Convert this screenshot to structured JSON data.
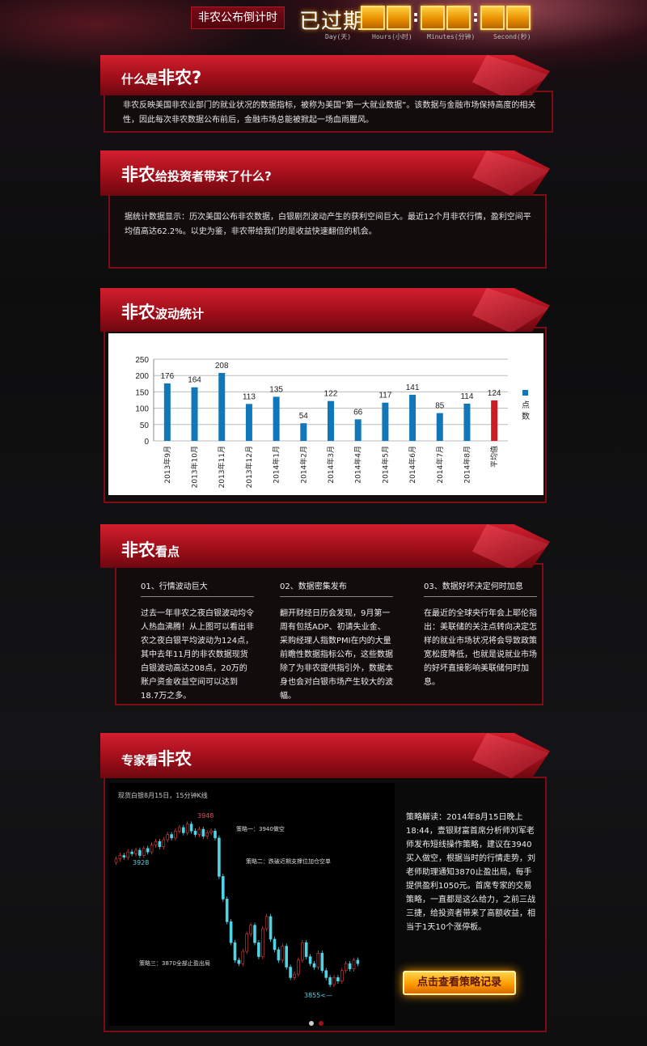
{
  "countdown": {
    "label": "非农公布倒计时",
    "status": "已过期",
    "units": [
      "Day(天)",
      "Hours(小时)",
      "Minutes(分钟)",
      "Second(秒)"
    ]
  },
  "sections": {
    "what": {
      "title_small": "什么是",
      "title_big": "非农?",
      "body": "非农反映美国非农业部门的就业状况的数据指标，被称为美国“第一大就业数据”。该数据与金融市场保持高度的相关性，因此每次非农数据公布前后，金融市场总能被掀起一场血雨腥风。"
    },
    "bring": {
      "title_big": "非农",
      "title_small": "给投资者带来了什么?",
      "body": "据统计数据显示：历次美国公布非农数据，白银剧烈波动产生的获利空间巨大。最近12个月非农行情，盈利空间平均值高达62.2%。以史为鉴，非农带给我们的是收益快速翻倍的机会。"
    },
    "stats": {
      "title_big": "非农",
      "title_small": "波动统计"
    },
    "points": {
      "title_big": "非农",
      "title_small": "看点",
      "items": [
        {
          "heading": "01、行情波动巨大",
          "body": "过去一年非农之夜白银波动均令人热血沸腾！从上图可以看出非农之夜白银平均波动为124点，其中去年11月的非农数据现货白银波动高达208点，20万的账户资金收益空间可以达到18.7万之多。"
        },
        {
          "heading": "02、数据密集发布",
          "body": "翻开财经日历会发现，9月第一周有包括ADP、初请失业金、采购经理人指数PMI在内的大量前瞻性数据指标公布，这些数据除了为非农提供指引外，数据本身也会对白银市场产生较大的波幅。"
        },
        {
          "heading": "03、数据好坏决定何时加息",
          "body": "在最近的全球央行年会上耶伦指出：美联储的关注点转向决定怎样的就业市场状况将会导致政策宽松度降低，也就是说就业市场的好坏直接影响美联储何时加息。"
        }
      ]
    },
    "expert": {
      "title_small": "专家看",
      "title_big": "非农",
      "kline_caption": "现货白银8月15日，15分钟K线",
      "price_high": "3948",
      "price_open": "3928",
      "price_low": "3855<—",
      "strategy_1": "策略一：3940做空",
      "strategy_2": "策略二：跌破近期支撑位加仓空单",
      "strategy_3": "策略三：3870全部止盈出局",
      "analysis": "策略解读：2014年8月15日晚上18:44，壹银财富首席分析师刘军老师发布短线操作策略，建议在3940买入做空，根据当时的行情走势，刘老师助理通知3870止盈出局，每手提供盈利1050元。首席专家的交易策略，一直都是这么给力，之前三战三捷，给投资者带来了高额收益，相当于1天10个涨停板。",
      "cta": "点击查看策略记录"
    }
  },
  "chart_data": {
    "type": "bar",
    "categories": [
      "2013年9月",
      "2013年10月",
      "2013年11月",
      "2013年12月",
      "2014年1月",
      "2014年2月",
      "2014年3月",
      "2014年4月",
      "2014年5月",
      "2014年6月",
      "2014年7月",
      "2014年8月",
      "平均值"
    ],
    "values": [
      176,
      164,
      208,
      113,
      135,
      54,
      122,
      66,
      117,
      141,
      85,
      114,
      124
    ],
    "series": [
      {
        "name": "点数",
        "values": [
          176,
          164,
          208,
          113,
          135,
          54,
          122,
          66,
          117,
          141,
          85,
          114,
          124
        ]
      }
    ],
    "ylim": [
      0,
      250
    ],
    "yticks": [
      0,
      50,
      100,
      150,
      200,
      250
    ],
    "grid": true,
    "legend": "right",
    "colors": {
      "bar": "#1177b8",
      "average": "#cc1d25"
    }
  },
  "kline_data": {
    "closes": [
      3928,
      3930,
      3929,
      3932,
      3931,
      3933,
      3930,
      3934,
      3932,
      3936,
      3938,
      3935,
      3939,
      3942,
      3940,
      3944,
      3946,
      3943,
      3948,
      3944,
      3942,
      3945,
      3941,
      3943,
      3944,
      3940,
      3918,
      3905,
      3892,
      3880,
      3870,
      3868,
      3875,
      3885,
      3890,
      3880,
      3872,
      3888,
      3895,
      3882,
      3876,
      3870,
      3878,
      3866,
      3860,
      3862,
      3870,
      3880,
      3872,
      3868,
      3866,
      3874,
      3864,
      3860,
      3856,
      3860,
      3858,
      3864,
      3868,
      3865,
      3870,
      3868
    ]
  }
}
